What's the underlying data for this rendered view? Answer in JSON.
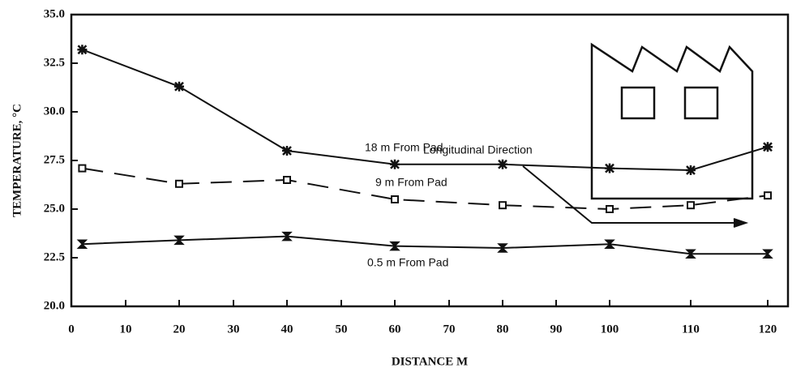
{
  "chart_data": {
    "type": "line",
    "xlabel": "DISTANCE M",
    "ylabel": "TEMPERATURE, °C",
    "annotation": "Longitudinal Direction",
    "xticks": [
      0,
      10,
      20,
      30,
      40,
      50,
      60,
      70,
      80,
      90,
      100,
      110,
      120
    ],
    "xlim": [
      0,
      120
    ],
    "ylim": [
      20,
      35
    ],
    "yticks": [
      {
        "value": 20,
        "label": "20.0"
      },
      22.5,
      {
        "value": 25,
        "label": "25.0"
      },
      27.5,
      {
        "value": 30,
        "label": "30.0"
      },
      32.5,
      {
        "value": 35,
        "label": "35.0"
      }
    ],
    "x": [
      2,
      20,
      40,
      60,
      80,
      100,
      110,
      120
    ],
    "series": [
      {
        "name": "18 m From Pad",
        "color": "#111111",
        "dashed": false,
        "marker": "star",
        "values": [
          33.2,
          31.3,
          28.0,
          27.3,
          27.3,
          27.1,
          27.0,
          28.2
        ]
      },
      {
        "name": "9 m From Pad",
        "color": "#111111",
        "dashed": true,
        "marker": "square",
        "values": [
          27.1,
          26.3,
          26.5,
          25.5,
          25.2,
          25.0,
          25.2,
          25.7
        ]
      },
      {
        "name": "0.5 m From Pad",
        "color": "#111111",
        "dashed": false,
        "marker": "cross",
        "values": [
          23.2,
          23.4,
          23.6,
          23.1,
          23.0,
          23.2,
          22.7,
          22.7
        ]
      }
    ]
  }
}
